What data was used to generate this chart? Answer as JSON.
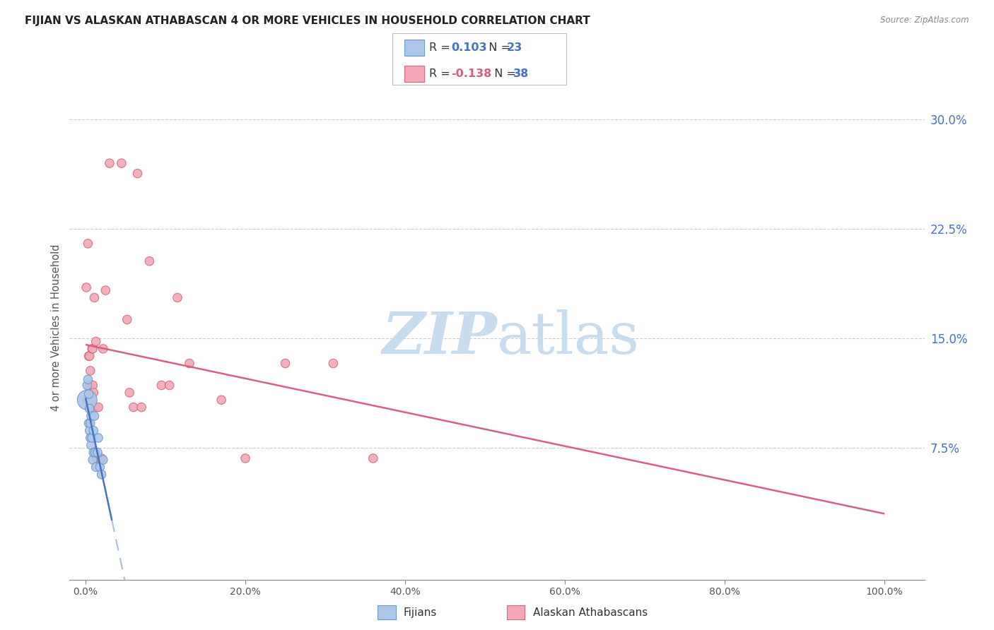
{
  "title": "FIJIAN VS ALASKAN ATHABASCAN 4 OR MORE VEHICLES IN HOUSEHOLD CORRELATION CHART",
  "source": "Source: ZipAtlas.com",
  "ylabel": "4 or more Vehicles in Household",
  "ytick_vals": [
    0.075,
    0.15,
    0.225,
    0.3
  ],
  "ytick_labels": [
    "7.5%",
    "15.0%",
    "22.5%",
    "30.0%"
  ],
  "xtick_vals": [
    0.0,
    0.2,
    0.4,
    0.6,
    0.8,
    1.0
  ],
  "xtick_labels": [
    "0.0%",
    "20.0%",
    "40.0%",
    "60.0%",
    "80.0%",
    "100.0%"
  ],
  "xlim": [
    -0.02,
    1.05
  ],
  "ylim": [
    -0.015,
    0.33
  ],
  "fijians_R": 0.103,
  "fijians_N": 23,
  "athabascan_R": -0.138,
  "athabascan_N": 38,
  "fijian_fill_color": "#AEC6E8",
  "fijian_edge_color": "#6699CC",
  "athabascan_fill_color": "#F4A8B8",
  "athabascan_edge_color": "#D9667A",
  "fijian_line_color": "#4472C4",
  "athabascan_line_color": "#D9607A",
  "dashed_line_color": "#99BBDD",
  "grid_color": "#CCCCCC",
  "watermark_color": "#C8DCF0",
  "legend_label_fijians": "Fijians",
  "legend_label_athabascan": "Alaskan Athabascans",
  "fijians_x": [
    0.002,
    0.002,
    0.003,
    0.004,
    0.004,
    0.005,
    0.005,
    0.006,
    0.006,
    0.007,
    0.007,
    0.008,
    0.009,
    0.01,
    0.01,
    0.011,
    0.012,
    0.013,
    0.015,
    0.016,
    0.018,
    0.02,
    0.022
  ],
  "fijians_y": [
    0.118,
    0.108,
    0.122,
    0.112,
    0.092,
    0.102,
    0.087,
    0.092,
    0.082,
    0.097,
    0.077,
    0.082,
    0.067,
    0.087,
    0.072,
    0.097,
    0.072,
    0.062,
    0.072,
    0.082,
    0.062,
    0.057,
    0.067
  ],
  "fijians_size": [
    80,
    400,
    80,
    80,
    80,
    80,
    80,
    80,
    80,
    80,
    80,
    80,
    80,
    80,
    80,
    80,
    80,
    80,
    80,
    80,
    80,
    80,
    80
  ],
  "athabascan_x": [
    0.001,
    0.002,
    0.003,
    0.004,
    0.005,
    0.005,
    0.006,
    0.007,
    0.008,
    0.009,
    0.009,
    0.01,
    0.011,
    0.012,
    0.013,
    0.014,
    0.016,
    0.018,
    0.02,
    0.022,
    0.025,
    0.03,
    0.045,
    0.052,
    0.055,
    0.06,
    0.065,
    0.07,
    0.08,
    0.095,
    0.105,
    0.115,
    0.13,
    0.17,
    0.2,
    0.25,
    0.31,
    0.36
  ],
  "athabascan_y": [
    0.185,
    0.108,
    0.215,
    0.138,
    0.118,
    0.138,
    0.128,
    0.108,
    0.143,
    0.118,
    0.143,
    0.113,
    0.178,
    0.103,
    0.148,
    0.068,
    0.103,
    0.068,
    0.068,
    0.143,
    0.183,
    0.27,
    0.27,
    0.163,
    0.113,
    0.103,
    0.263,
    0.103,
    0.203,
    0.118,
    0.118,
    0.178,
    0.133,
    0.108,
    0.068,
    0.133,
    0.133,
    0.068
  ],
  "athabascan_size": [
    80,
    80,
    80,
    80,
    80,
    80,
    80,
    80,
    80,
    80,
    80,
    80,
    80,
    80,
    80,
    80,
    80,
    80,
    80,
    80,
    80,
    80,
    80,
    80,
    80,
    80,
    80,
    80,
    80,
    80,
    80,
    80,
    80,
    80,
    80,
    80,
    80,
    80
  ]
}
